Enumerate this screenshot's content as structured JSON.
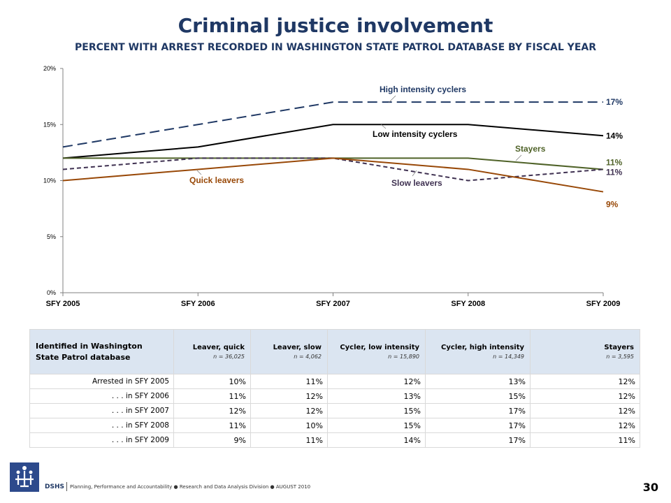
{
  "header": {
    "title": "Criminal justice involvement",
    "subtitle": "PERCENT WITH ARREST RECORDED IN WASHINGTON STATE PATROL DATABASE BY FISCAL YEAR"
  },
  "chart_data": {
    "type": "line",
    "title": "Criminal justice involvement",
    "subtitle": "PERCENT WITH ARREST RECORDED IN WASHINGTON STATE PATROL DATABASE BY FISCAL YEAR",
    "xlabel": "",
    "ylabel": "",
    "x": [
      "SFY 2005",
      "SFY 2006",
      "SFY 2007",
      "SFY 2008",
      "SFY 2009"
    ],
    "ylim": [
      0,
      20
    ],
    "yticks": [
      0,
      5,
      10,
      15,
      20
    ],
    "ytick_labels": [
      "0%",
      "5%",
      "10%",
      "15%",
      "20%"
    ],
    "grid": false,
    "series": [
      {
        "name": "High intensity cyclers",
        "values": [
          13,
          15,
          17,
          17,
          17
        ],
        "color": "#1f3864",
        "dash": "long",
        "end_label": "17%",
        "label_color": "#1f3864"
      },
      {
        "name": "Low intensity cyclers",
        "values": [
          12,
          13,
          15,
          15,
          14
        ],
        "color": "#000000",
        "dash": "solid",
        "end_label": "14%",
        "label_color": "#000000"
      },
      {
        "name": "Stayers",
        "values": [
          12,
          12,
          12,
          12,
          11
        ],
        "color": "#4f6228",
        "dash": "solid",
        "end_label": "11%",
        "label_color": "#4f6228"
      },
      {
        "name": "Slow leavers",
        "values": [
          11,
          12,
          12,
          10,
          11
        ],
        "color": "#3f3151",
        "dash": "short",
        "end_label": "11%",
        "label_color": "#3f3151"
      },
      {
        "name": "Quick leavers",
        "values": [
          10,
          11,
          12,
          11,
          9
        ],
        "color": "#984807",
        "dash": "solid",
        "end_label": "9%",
        "label_color": "#984807"
      }
    ]
  },
  "table": {
    "corner_label": "Identified in Washington State Patrol database",
    "columns": [
      {
        "name": "Leaver, quick",
        "n": "n = 36,025"
      },
      {
        "name": "Leaver, slow",
        "n": "n = 4,062"
      },
      {
        "name": "Cycler, low intensity",
        "n": "n = 15,890"
      },
      {
        "name": "Cycler, high intensity",
        "n": "n = 14,349"
      },
      {
        "name": "Stayers",
        "n": "n = 3,595"
      }
    ],
    "rows": [
      {
        "label": "Arrested in SFY 2005",
        "cells": [
          "10%",
          "11%",
          "12%",
          "13%",
          "12%"
        ]
      },
      {
        "label": ". . . in SFY 2006",
        "cells": [
          "11%",
          "12%",
          "13%",
          "15%",
          "12%"
        ]
      },
      {
        "label": ". . . in SFY 2007",
        "cells": [
          "12%",
          "12%",
          "15%",
          "17%",
          "12%"
        ]
      },
      {
        "label": ". . . in SFY 2008",
        "cells": [
          "11%",
          "10%",
          "15%",
          "17%",
          "12%"
        ]
      },
      {
        "label": ". . . in SFY 2009",
        "cells": [
          "9%",
          "11%",
          "14%",
          "17%",
          "11%"
        ]
      }
    ]
  },
  "footer": {
    "logo_icon": "dshs-logo-icon",
    "org": "DSHS",
    "text": "Planning, Performance and Accountability ● Research and Data Analysis Division ● AUGUST 2010",
    "page": "30"
  }
}
